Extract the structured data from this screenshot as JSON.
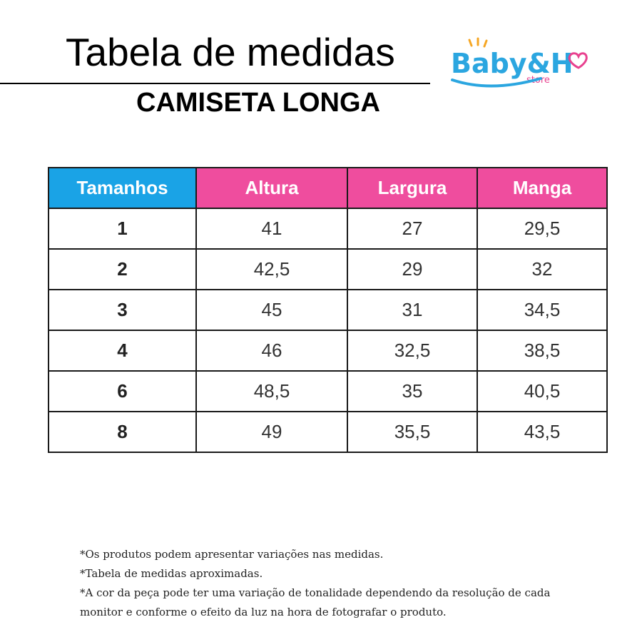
{
  "header": {
    "title": "Tabela de medidas",
    "subtitle": "CAMISETA LONGA"
  },
  "logo": {
    "brand": "Baby&H",
    "tagline": "store",
    "colors": {
      "blue": "#2ba6e0",
      "pink": "#e8418f",
      "orange": "#f6a623"
    }
  },
  "table": {
    "colors": {
      "header_first": "#1aa3e6",
      "header_rest": "#ef4d9e",
      "border": "#1a1a1a"
    },
    "headers": [
      "Tamanhos",
      "Altura",
      "Largura",
      "Manga"
    ],
    "rows": [
      {
        "size": "1",
        "altura": "41",
        "largura": "27",
        "manga": "29,5"
      },
      {
        "size": "2",
        "altura": "42,5",
        "largura": "29",
        "manga": "32"
      },
      {
        "size": "3",
        "altura": "45",
        "largura": "31",
        "manga": "34,5"
      },
      {
        "size": "4",
        "altura": "46",
        "largura": "32,5",
        "manga": "38,5"
      },
      {
        "size": "6",
        "altura": "48,5",
        "largura": "35",
        "manga": "40,5"
      },
      {
        "size": "8",
        "altura": "49",
        "largura": "35,5",
        "manga": "43,5"
      }
    ]
  },
  "notes": [
    "*Os produtos podem apresentar variações nas medidas.",
    "*Tabela de medidas aproximadas.",
    "*A cor da peça pode ter uma variação de tonalidade dependendo da resolução de cada monitor e conforme o efeito da luz na hora de fotografar o produto."
  ]
}
